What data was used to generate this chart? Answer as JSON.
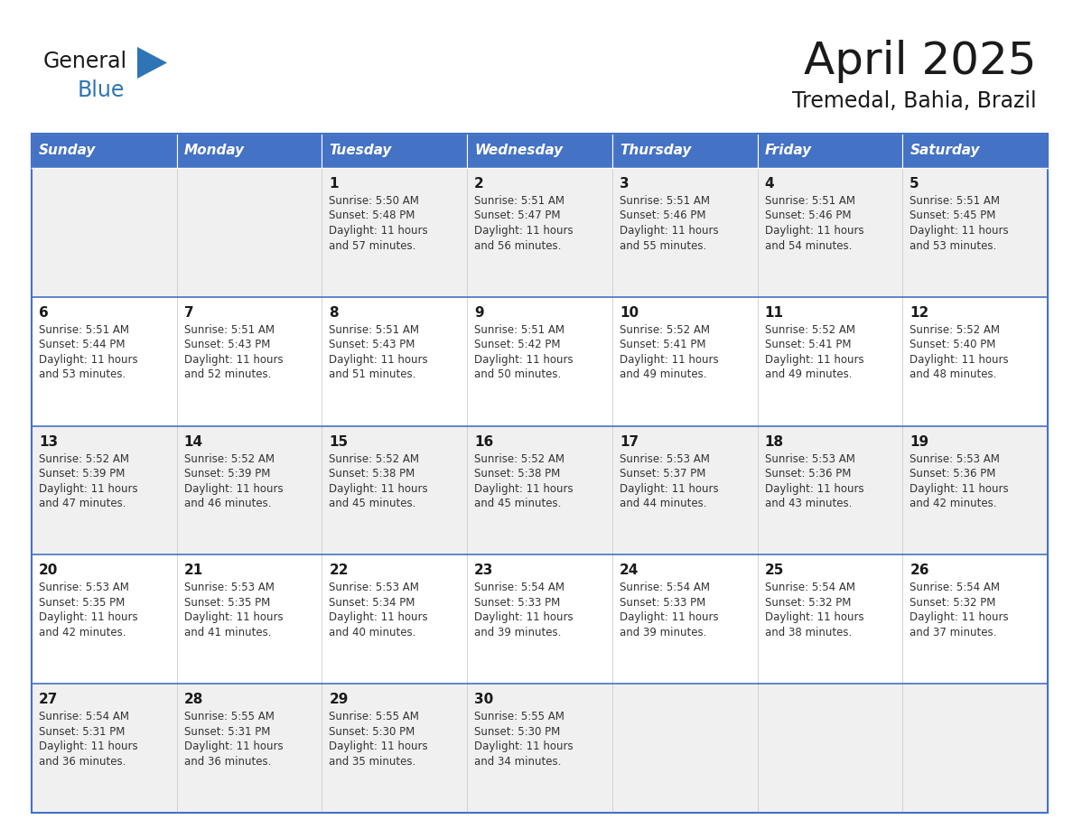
{
  "title": "April 2025",
  "subtitle": "Tremedal, Bahia, Brazil",
  "days_of_week": [
    "Sunday",
    "Monday",
    "Tuesday",
    "Wednesday",
    "Thursday",
    "Friday",
    "Saturday"
  ],
  "header_bg": "#4472C4",
  "header_text": "#FFFFFF",
  "border_color": "#4472C4",
  "row_sep_color": "#4472C4",
  "title_color": "#1a1a1a",
  "subtitle_color": "#1a1a1a",
  "text_color": "#333333",
  "day_num_color": "#1a1a1a",
  "logo_general_color": "#1a1a1a",
  "logo_blue_color": "#2E75B6",
  "logo_triangle_color": "#2E75B6",
  "cell_bg_even": "#FFFFFF",
  "cell_bg_odd": "#F0F0F0",
  "calendar": [
    [
      {
        "day": null,
        "info": ""
      },
      {
        "day": null,
        "info": ""
      },
      {
        "day": 1,
        "info": "Sunrise: 5:50 AM\nSunset: 5:48 PM\nDaylight: 11 hours\nand 57 minutes."
      },
      {
        "day": 2,
        "info": "Sunrise: 5:51 AM\nSunset: 5:47 PM\nDaylight: 11 hours\nand 56 minutes."
      },
      {
        "day": 3,
        "info": "Sunrise: 5:51 AM\nSunset: 5:46 PM\nDaylight: 11 hours\nand 55 minutes."
      },
      {
        "day": 4,
        "info": "Sunrise: 5:51 AM\nSunset: 5:46 PM\nDaylight: 11 hours\nand 54 minutes."
      },
      {
        "day": 5,
        "info": "Sunrise: 5:51 AM\nSunset: 5:45 PM\nDaylight: 11 hours\nand 53 minutes."
      }
    ],
    [
      {
        "day": 6,
        "info": "Sunrise: 5:51 AM\nSunset: 5:44 PM\nDaylight: 11 hours\nand 53 minutes."
      },
      {
        "day": 7,
        "info": "Sunrise: 5:51 AM\nSunset: 5:43 PM\nDaylight: 11 hours\nand 52 minutes."
      },
      {
        "day": 8,
        "info": "Sunrise: 5:51 AM\nSunset: 5:43 PM\nDaylight: 11 hours\nand 51 minutes."
      },
      {
        "day": 9,
        "info": "Sunrise: 5:51 AM\nSunset: 5:42 PM\nDaylight: 11 hours\nand 50 minutes."
      },
      {
        "day": 10,
        "info": "Sunrise: 5:52 AM\nSunset: 5:41 PM\nDaylight: 11 hours\nand 49 minutes."
      },
      {
        "day": 11,
        "info": "Sunrise: 5:52 AM\nSunset: 5:41 PM\nDaylight: 11 hours\nand 49 minutes."
      },
      {
        "day": 12,
        "info": "Sunrise: 5:52 AM\nSunset: 5:40 PM\nDaylight: 11 hours\nand 48 minutes."
      }
    ],
    [
      {
        "day": 13,
        "info": "Sunrise: 5:52 AM\nSunset: 5:39 PM\nDaylight: 11 hours\nand 47 minutes."
      },
      {
        "day": 14,
        "info": "Sunrise: 5:52 AM\nSunset: 5:39 PM\nDaylight: 11 hours\nand 46 minutes."
      },
      {
        "day": 15,
        "info": "Sunrise: 5:52 AM\nSunset: 5:38 PM\nDaylight: 11 hours\nand 45 minutes."
      },
      {
        "day": 16,
        "info": "Sunrise: 5:52 AM\nSunset: 5:38 PM\nDaylight: 11 hours\nand 45 minutes."
      },
      {
        "day": 17,
        "info": "Sunrise: 5:53 AM\nSunset: 5:37 PM\nDaylight: 11 hours\nand 44 minutes."
      },
      {
        "day": 18,
        "info": "Sunrise: 5:53 AM\nSunset: 5:36 PM\nDaylight: 11 hours\nand 43 minutes."
      },
      {
        "day": 19,
        "info": "Sunrise: 5:53 AM\nSunset: 5:36 PM\nDaylight: 11 hours\nand 42 minutes."
      }
    ],
    [
      {
        "day": 20,
        "info": "Sunrise: 5:53 AM\nSunset: 5:35 PM\nDaylight: 11 hours\nand 42 minutes."
      },
      {
        "day": 21,
        "info": "Sunrise: 5:53 AM\nSunset: 5:35 PM\nDaylight: 11 hours\nand 41 minutes."
      },
      {
        "day": 22,
        "info": "Sunrise: 5:53 AM\nSunset: 5:34 PM\nDaylight: 11 hours\nand 40 minutes."
      },
      {
        "day": 23,
        "info": "Sunrise: 5:54 AM\nSunset: 5:33 PM\nDaylight: 11 hours\nand 39 minutes."
      },
      {
        "day": 24,
        "info": "Sunrise: 5:54 AM\nSunset: 5:33 PM\nDaylight: 11 hours\nand 39 minutes."
      },
      {
        "day": 25,
        "info": "Sunrise: 5:54 AM\nSunset: 5:32 PM\nDaylight: 11 hours\nand 38 minutes."
      },
      {
        "day": 26,
        "info": "Sunrise: 5:54 AM\nSunset: 5:32 PM\nDaylight: 11 hours\nand 37 minutes."
      }
    ],
    [
      {
        "day": 27,
        "info": "Sunrise: 5:54 AM\nSunset: 5:31 PM\nDaylight: 11 hours\nand 36 minutes."
      },
      {
        "day": 28,
        "info": "Sunrise: 5:55 AM\nSunset: 5:31 PM\nDaylight: 11 hours\nand 36 minutes."
      },
      {
        "day": 29,
        "info": "Sunrise: 5:55 AM\nSunset: 5:30 PM\nDaylight: 11 hours\nand 35 minutes."
      },
      {
        "day": 30,
        "info": "Sunrise: 5:55 AM\nSunset: 5:30 PM\nDaylight: 11 hours\nand 34 minutes."
      },
      {
        "day": null,
        "info": ""
      },
      {
        "day": null,
        "info": ""
      },
      {
        "day": null,
        "info": ""
      }
    ]
  ]
}
